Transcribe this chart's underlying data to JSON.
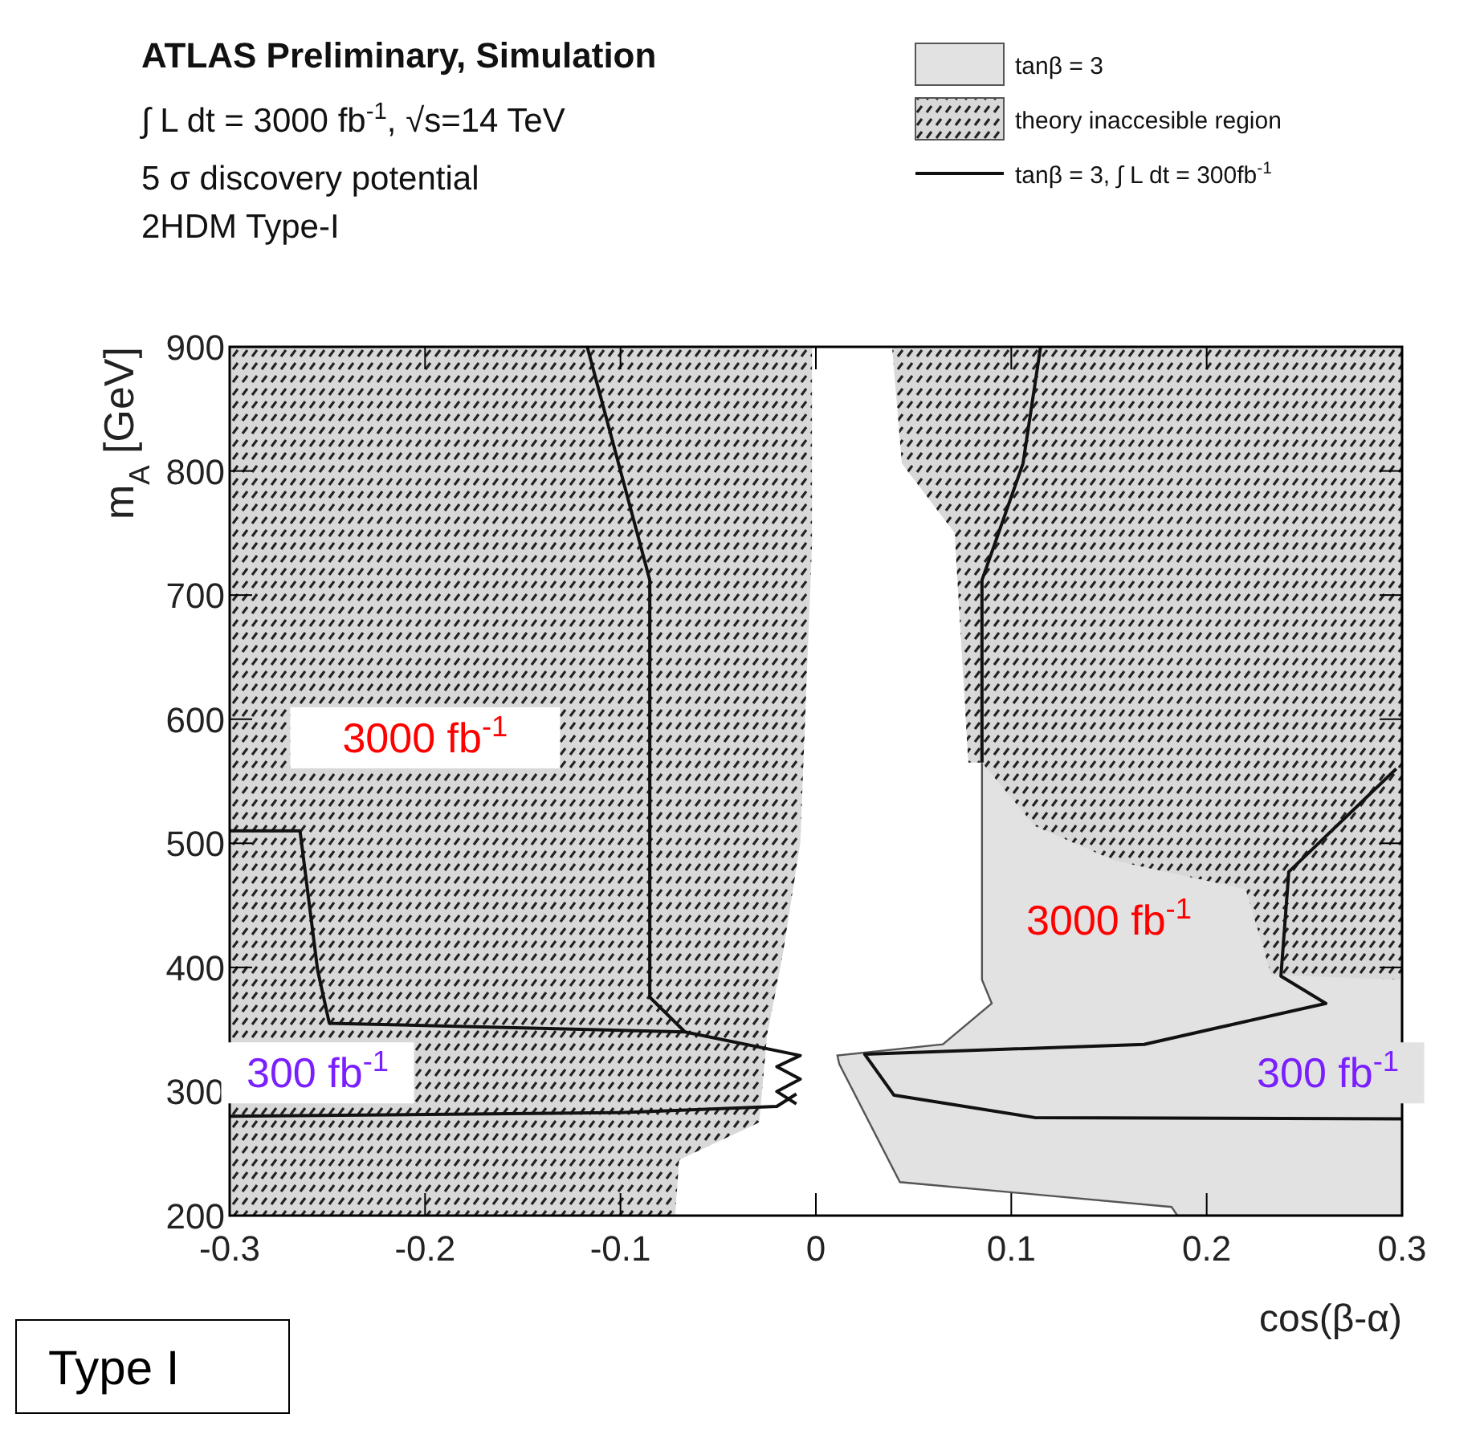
{
  "chart_data": {
    "type": "line",
    "title": "ATLAS Preliminary, Simulation",
    "subtitle": "∫ L dt = 3000 fb$^{-1}$, √s=14 TeV",
    "xlabel": "cos(β-α)",
    "ylabel": "m$_{A}$ [GeV]",
    "xlim": [
      -0.3,
      0.3
    ],
    "xticks": [
      -0.3,
      -0.2,
      -0.1,
      0,
      0.1,
      0.2,
      0.3
    ],
    "ylim": [
      200,
      900
    ],
    "yticks": [
      200,
      300,
      400,
      500,
      600,
      700,
      800,
      900
    ],
    "legend": "top right",
    "grid": false,
    "series": [
      {
        "name": "tanβ = 3",
        "type": "area",
        "color": "#e2e2e2",
        "x": [
          0.085,
          0.085,
          0.09,
          0.065,
          0.011,
          0.012,
          0.043,
          0.182,
          0.185,
          0.3,
          0.3,
          0.085
        ],
        "values": [
          565,
          390,
          371,
          338,
          329,
          322,
          227,
          207,
          200,
          200,
          565,
          565
        ]
      },
      {
        "name": "theory inaccesible region",
        "type": "area",
        "color": "#222222",
        "x": [
          -0.3,
          -0.3,
          -0.002,
          -0.002,
          -0.008,
          -0.017,
          -0.025,
          -0.029,
          -0.07,
          -0.072,
          -0.3,
          null,
          0.039,
          0.044,
          0.071,
          0.078,
          0.085,
          0.112,
          0.153,
          0.22,
          0.233,
          0.3,
          0.3,
          0.039
        ],
        "values": [
          200,
          900,
          900,
          740,
          500,
          410,
          345,
          275,
          245,
          200,
          200,
          null,
          900,
          806,
          750,
          565,
          565,
          514,
          486,
          463,
          394,
          390,
          900,
          900
        ]
      },
      {
        "name": "tanβ = 3, ∫ L dt = 300fb$^{-1}$",
        "color": "#111111",
        "x": [
          -0.117,
          -0.085,
          -0.085,
          -0.067,
          -0.008,
          -0.02,
          -0.008,
          -0.02,
          -0.01,
          null,
          -0.3,
          -0.264,
          -0.255,
          -0.249,
          -0.067,
          null,
          -0.3,
          -0.1,
          -0.02,
          -0.01,
          null,
          0.297,
          0.242,
          0.238,
          0.261,
          0.168,
          0.025,
          0.04,
          0.112,
          0.3,
          null,
          0.115,
          0.106,
          0.085,
          0.085
        ],
        "values": [
          900,
          712,
          376,
          348,
          329,
          320,
          310,
          300,
          290,
          null,
          510,
          510,
          398,
          355,
          348,
          null,
          280,
          283,
          288,
          298,
          null,
          560,
          477,
          393,
          371,
          338,
          330,
          297,
          279,
          278,
          null,
          900,
          806,
          712,
          565
        ]
      }
    ],
    "annotations": [
      "5 σ discovery potential",
      "2HDM Type-I",
      "3000 fb$^{-1}$",
      "3000 fb$^{-1}$",
      "300 fb$^{-1}$",
      "300 fb$^{-1}$",
      "Type I"
    ]
  }
}
